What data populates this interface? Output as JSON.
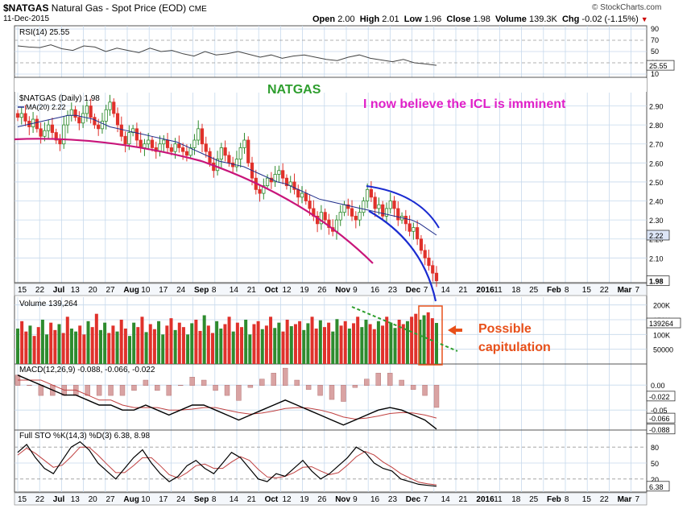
{
  "header": {
    "symbol": "$NATGAS",
    "name": "Natural Gas - Spot Price (EOD)",
    "exchange": "CME",
    "date": "11-Dec-2015",
    "open_label": "Open",
    "open": "2.00",
    "high_label": "High",
    "high": "2.01",
    "low_label": "Low",
    "low": "1.96",
    "close_label": "Close",
    "close": "1.98",
    "volume_label": "Volume",
    "volume": "139.3K",
    "chg_label": "Chg",
    "chg": "-0.02 (-1.15%)",
    "watermark": "© StockCharts.com"
  },
  "annotations": {
    "title": "NATGAS",
    "comment": "I now believe the ICL is imminent",
    "capitulation": "Possible\ncapitulation"
  },
  "colors": {
    "up": "#2e8b2e",
    "down": "#e0312b",
    "ma": "#1f2d8a",
    "magenta_curve": "#c8157a",
    "blue_curve": "#1a2bd0",
    "green_title": "#2e9e2e",
    "comment": "#e020c8",
    "capitulation": "#e8501a",
    "grid": "#c6d9ec"
  },
  "x_axis": {
    "labels": [
      "15",
      "22",
      "Jul",
      "13",
      "20",
      "27",
      "Aug",
      "10",
      "17",
      "24",
      "Sep",
      "8",
      "14",
      "21",
      "Oct",
      "12",
      "19",
      "26",
      "Nov",
      "9",
      "16",
      "23",
      "Dec",
      "7",
      "14",
      "21",
      "2016",
      "11",
      "18",
      "25",
      "Feb",
      "8",
      "15",
      "22",
      "Mar",
      "7"
    ]
  },
  "chart_data": [
    {
      "type": "line",
      "panel": "RSI",
      "title": "RSI(14) 25.55",
      "series": [
        {
          "name": "RSI(14)",
          "last": 25.55,
          "values": [
            60,
            58,
            57,
            62,
            55,
            52,
            60,
            58,
            50,
            56,
            52,
            48,
            56,
            50,
            52,
            46,
            42,
            50,
            44,
            46,
            50,
            45,
            40,
            44,
            38,
            42,
            44,
            40,
            36,
            34,
            40,
            44,
            38,
            35,
            32,
            36,
            30,
            28,
            25.55
          ]
        }
      ],
      "y_ticks": [
        10,
        30,
        50,
        70,
        90
      ],
      "ylim": [
        10,
        90
      ]
    },
    {
      "type": "line",
      "panel": "price",
      "title": "$NATGAS (Daily) 1.98",
      "series": [
        {
          "name": "$NATGAS (Daily)",
          "last": 1.98,
          "values": [
            2.84,
            2.86,
            2.82,
            2.79,
            2.83,
            2.78,
            2.74,
            2.77,
            2.8,
            2.76,
            2.72,
            2.7,
            2.8,
            2.85,
            2.88,
            2.84,
            2.81,
            2.86,
            2.9,
            2.84,
            2.8,
            2.78,
            2.82,
            2.88,
            2.92,
            2.86,
            2.8,
            2.74,
            2.7,
            2.76,
            2.78,
            2.72,
            2.68,
            2.7,
            2.72,
            2.68,
            2.66,
            2.7,
            2.72,
            2.68,
            2.66,
            2.7,
            2.68,
            2.66,
            2.64,
            2.68,
            2.72,
            2.78,
            2.7,
            2.66,
            2.6,
            2.56,
            2.62,
            2.68,
            2.64,
            2.6,
            2.58,
            2.62,
            2.68,
            2.72,
            2.6,
            2.52,
            2.46,
            2.44,
            2.48,
            2.52,
            2.5,
            2.54,
            2.56,
            2.52,
            2.48,
            2.5,
            2.46,
            2.42,
            2.44,
            2.4,
            2.36,
            2.32,
            2.28,
            2.34,
            2.3,
            2.26,
            2.24,
            2.3,
            2.34,
            2.38,
            2.36,
            2.32,
            2.3,
            2.34,
            2.4,
            2.46,
            2.42,
            2.36,
            2.38,
            2.32,
            2.36,
            2.4,
            2.36,
            2.3,
            2.32,
            2.28,
            2.24,
            2.26,
            2.2,
            2.14,
            2.1,
            2.06,
            2.02,
            1.98
          ]
        },
        {
          "name": "MA(20)",
          "last": 2.22,
          "values": [
            2.79,
            2.8,
            2.81,
            2.82,
            2.83,
            2.84,
            2.85,
            2.85,
            2.84,
            2.83,
            2.81,
            2.79,
            2.78,
            2.77,
            2.76,
            2.75,
            2.74,
            2.73,
            2.72,
            2.71,
            2.69,
            2.67,
            2.65,
            2.63,
            2.61,
            2.6,
            2.59,
            2.58,
            2.56,
            2.54,
            2.52,
            2.5,
            2.49,
            2.47,
            2.45,
            2.43,
            2.41,
            2.4,
            2.39,
            2.38,
            2.37,
            2.36,
            2.35,
            2.34,
            2.33,
            2.32,
            2.31,
            2.3,
            2.28,
            2.25,
            2.22
          ]
        }
      ],
      "y_ticks": [
        2.1,
        2.2,
        2.3,
        2.4,
        2.5,
        2.6,
        2.7,
        2.8,
        2.9
      ],
      "y_tags": [
        2.22,
        1.98
      ],
      "ylim": [
        1.97,
        2.97
      ]
    },
    {
      "type": "bar",
      "panel": "volume",
      "title": "Volume 139,264",
      "last": 139264,
      "series": [
        {
          "name": "Volume",
          "values": [
            120,
            145,
            110,
            130,
            95,
            125,
            150,
            100,
            140,
            115,
            135,
            105,
            160,
            120,
            110,
            130,
            100,
            145,
            125,
            170,
            115,
            140,
            105,
            130,
            110,
            150,
            120,
            95,
            140,
            125,
            160,
            108,
            135,
            118,
            145,
            100,
            130,
            155,
            115,
            140,
            125,
            100,
            138,
            150,
            112,
            165,
            130,
            105,
            145,
            120,
            135,
            160,
            110,
            140,
            125,
            150,
            100,
            135,
            145,
            118,
            130,
            160,
            122,
            140,
            110,
            150,
            128,
            135,
            145,
            115,
            138,
            160,
            120,
            148,
            125,
            140,
            110,
            152,
            130,
            145,
            120,
            138,
            160,
            125,
            150,
            135,
            118,
            145,
            130,
            160,
            140,
            122,
            150,
            135,
            145,
            160,
            170,
            150,
            165,
            175,
            155,
            139
          ]
        }
      ],
      "y_ticks": [
        50000,
        100000,
        150000,
        200000
      ],
      "y_tick_labels": [
        "50000",
        "100K",
        "150K",
        "200K"
      ],
      "y_tags": [
        "139264"
      ]
    },
    {
      "type": "line",
      "panel": "MACD",
      "title": "MACD(12,26,9) -0.088, -0.066, -0.022",
      "series": [
        {
          "name": "MACD",
          "values": [
            0.02,
            0.01,
            0.0,
            -0.01,
            -0.02,
            -0.02,
            -0.03,
            -0.04,
            -0.04,
            -0.05,
            -0.05,
            -0.04,
            -0.05,
            -0.06,
            -0.05,
            -0.04,
            -0.04,
            -0.05,
            -0.06,
            -0.07,
            -0.06,
            -0.05,
            -0.04,
            -0.03,
            -0.04,
            -0.05,
            -0.06,
            -0.07,
            -0.08,
            -0.07,
            -0.06,
            -0.05,
            -0.045,
            -0.05,
            -0.06,
            -0.07,
            -0.088
          ]
        },
        {
          "name": "Signal",
          "values": [
            0.01,
            0.01,
            0.01,
            0.0,
            -0.01,
            -0.01,
            -0.02,
            -0.03,
            -0.03,
            -0.04,
            -0.045,
            -0.045,
            -0.045,
            -0.05,
            -0.05,
            -0.048,
            -0.045,
            -0.045,
            -0.05,
            -0.055,
            -0.058,
            -0.056,
            -0.052,
            -0.047,
            -0.045,
            -0.046,
            -0.05,
            -0.056,
            -0.064,
            -0.068,
            -0.066,
            -0.062,
            -0.057,
            -0.055,
            -0.056,
            -0.06,
            -0.066
          ]
        }
      ],
      "histogram_last": -0.022,
      "y_ticks": [
        0.0,
        -0.05
      ],
      "y_tags": [
        -0.022,
        -0.066,
        -0.088
      ]
    },
    {
      "type": "line",
      "panel": "STO",
      "title": "Full STO %K(14,3) %D(3) 6.38, 8.98",
      "series": [
        {
          "name": "%K",
          "values": [
            70,
            85,
            60,
            40,
            30,
            55,
            80,
            90,
            75,
            50,
            35,
            20,
            40,
            60,
            75,
            50,
            30,
            15,
            25,
            45,
            55,
            40,
            30,
            50,
            70,
            60,
            40,
            20,
            15,
            30,
            25,
            40,
            55,
            35,
            20,
            30,
            45,
            60,
            80,
            70,
            50,
            40,
            35,
            20,
            15,
            10,
            8,
            6.38
          ]
        },
        {
          "name": "%D",
          "values": [
            65,
            78,
            68,
            55,
            42,
            46,
            62,
            80,
            80,
            65,
            48,
            32,
            32,
            45,
            60,
            60,
            45,
            28,
            22,
            32,
            45,
            48,
            40,
            40,
            52,
            62,
            55,
            38,
            24,
            22,
            25,
            32,
            42,
            43,
            35,
            28,
            32,
            46,
            62,
            72,
            65,
            52,
            42,
            30,
            22,
            14,
            11,
            8.98
          ]
        }
      ],
      "y_ticks": [
        20,
        50,
        80
      ],
      "y_tags": [
        6.38
      ],
      "ylim": [
        0,
        100
      ]
    }
  ]
}
